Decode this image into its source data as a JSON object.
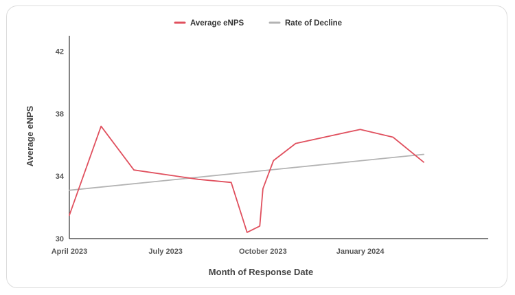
{
  "chart_data": {
    "type": "line",
    "xlabel": "Month of Response Date",
    "ylabel": "Average eNPS",
    "ylim": [
      30,
      43
    ],
    "yticks": [
      30,
      34,
      38,
      42
    ],
    "x_range": [
      "2023-04-01",
      "2024-05-01"
    ],
    "xticks": [
      {
        "date": "2023-04-01",
        "label": "April 2023"
      },
      {
        "date": "2023-07-01",
        "label": "July 2023"
      },
      {
        "date": "2023-10-01",
        "label": "October 2023"
      },
      {
        "date": "2024-01-01",
        "label": "January 2024"
      }
    ],
    "legend_position": "top-center",
    "grid": false,
    "series": [
      {
        "name": "Average eNPS",
        "color": "#e0505e",
        "points": [
          {
            "x": "2023-04-01",
            "y": 31.5
          },
          {
            "x": "2023-05-01",
            "y": 37.2
          },
          {
            "x": "2023-06-01",
            "y": 34.4
          },
          {
            "x": "2023-08-01",
            "y": 33.8
          },
          {
            "x": "2023-09-01",
            "y": 33.6
          },
          {
            "x": "2023-09-16",
            "y": 30.4
          },
          {
            "x": "2023-09-28",
            "y": 30.8
          },
          {
            "x": "2023-10-01",
            "y": 33.2
          },
          {
            "x": "2023-10-11",
            "y": 35.0
          },
          {
            "x": "2023-11-01",
            "y": 36.1
          },
          {
            "x": "2024-01-01",
            "y": 37.0
          },
          {
            "x": "2024-02-01",
            "y": 36.5
          },
          {
            "x": "2024-03-01",
            "y": 34.9
          }
        ]
      },
      {
        "name": "Rate of Decline",
        "color": "#b3b3b3",
        "points": [
          {
            "x": "2023-04-01",
            "y": 33.1
          },
          {
            "x": "2024-03-01",
            "y": 35.4
          }
        ]
      }
    ]
  }
}
